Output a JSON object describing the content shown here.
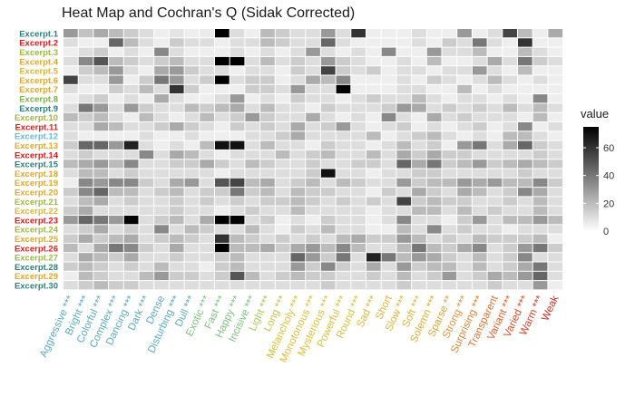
{
  "chart_data": {
    "type": "heatmap",
    "title": "Heat Map and Cochran's Q (Sidak Corrected)",
    "xlabel": "",
    "ylabel": "",
    "columns": [
      {
        "label": "Aggressive",
        "sig": "***",
        "color": "#5aaabf"
      },
      {
        "label": "Bright",
        "sig": "***",
        "color": "#5aaabf"
      },
      {
        "label": "Colorful",
        "sig": "***",
        "color": "#5aaabf"
      },
      {
        "label": "Complex",
        "sig": "***",
        "color": "#5aaabf"
      },
      {
        "label": "Dancing",
        "sig": "***",
        "color": "#5aaabf"
      },
      {
        "label": "Dark",
        "sig": "***",
        "color": "#5aaabf"
      },
      {
        "label": "Dense",
        "sig": "",
        "color": "#5aaabf"
      },
      {
        "label": "Disturbing",
        "sig": "***",
        "color": "#5aaabf"
      },
      {
        "label": "Dull",
        "sig": "***",
        "color": "#5aaabf"
      },
      {
        "label": "Exotic",
        "sig": "***",
        "color": "#7cc07f"
      },
      {
        "label": "Fast",
        "sig": "***",
        "color": "#7cc07f"
      },
      {
        "label": "Happy",
        "sig": "***",
        "color": "#7cc07f"
      },
      {
        "label": "Incisive",
        "sig": "***",
        "color": "#7cc07f"
      },
      {
        "label": "Light",
        "sig": "***",
        "color": "#a8c65a"
      },
      {
        "label": "Long",
        "sig": "***",
        "color": "#c5c050"
      },
      {
        "label": "Melancholy",
        "sig": "***",
        "color": "#d9be3a"
      },
      {
        "label": "Monotonous",
        "sig": "***",
        "color": "#d9be3a"
      },
      {
        "label": "Mysterious",
        "sig": "***",
        "color": "#d9be3a"
      },
      {
        "label": "Powerful",
        "sig": "***",
        "color": "#d9be3a"
      },
      {
        "label": "Round",
        "sig": "***",
        "color": "#d9be3a"
      },
      {
        "label": "Sad",
        "sig": "***",
        "color": "#d9b83a"
      },
      {
        "label": "Short",
        "sig": "",
        "color": "#dcb43a"
      },
      {
        "label": "Slow",
        "sig": "***",
        "color": "#dcb43a"
      },
      {
        "label": "Soft",
        "sig": "***",
        "color": "#dcb43a"
      },
      {
        "label": "Solemn",
        "sig": "***",
        "color": "#dcaa3a"
      },
      {
        "label": "Sparse",
        "sig": "**",
        "color": "#dca23a"
      },
      {
        "label": "Strong",
        "sig": "***",
        "color": "#dc923a"
      },
      {
        "label": "Surprising",
        "sig": "***",
        "color": "#dc8236"
      },
      {
        "label": "Transparent",
        "sig": "",
        "color": "#dc7232"
      },
      {
        "label": "Variant",
        "sig": "***",
        "color": "#d95f2e"
      },
      {
        "label": "Varied",
        "sig": "***",
        "color": "#d5502a"
      },
      {
        "label": "Warm",
        "sig": "***",
        "color": "#d04028"
      },
      {
        "label": "Weak",
        "sig": "",
        "color": "#cc2e24"
      }
    ],
    "rows": [
      {
        "label": "Excerpt.1",
        "color": "#2e7f7a"
      },
      {
        "label": "Excerpt.2",
        "color": "#e31a1c"
      },
      {
        "label": "Excerpt.3",
        "color": "#9db843"
      },
      {
        "label": "Excerpt.4",
        "color": "#e0a82c"
      },
      {
        "label": "Excerpt.5",
        "color": "#d9b43a"
      },
      {
        "label": "Excerpt.6",
        "color": "#e0a82c"
      },
      {
        "label": "Excerpt.7",
        "color": "#e0a82c"
      },
      {
        "label": "Excerpt.8",
        "color": "#7fae4a"
      },
      {
        "label": "Excerpt.9",
        "color": "#2e7f7a"
      },
      {
        "label": "Excerpt.10",
        "color": "#9db843"
      },
      {
        "label": "Excerpt.11",
        "color": "#e31a1c"
      },
      {
        "label": "Excerpt.12",
        "color": "#6ab8d9"
      },
      {
        "label": "Excerpt.13",
        "color": "#e0a82c"
      },
      {
        "label": "Excerpt.14",
        "color": "#e31a1c"
      },
      {
        "label": "Excerpt.15",
        "color": "#2e7f7a"
      },
      {
        "label": "Excerpt.18",
        "color": "#e0a82c"
      },
      {
        "label": "Excerpt.19",
        "color": "#e0a82c"
      },
      {
        "label": "Excerpt.20",
        "color": "#e0a82c"
      },
      {
        "label": "Excerpt.21",
        "color": "#9db843"
      },
      {
        "label": "Excerpt.22",
        "color": "#d9b43a"
      },
      {
        "label": "Excerpt.23",
        "color": "#e31a1c"
      },
      {
        "label": "Excerpt.24",
        "color": "#9db843"
      },
      {
        "label": "Excerpt.25",
        "color": "#e0a82c"
      },
      {
        "label": "Excerpt.26",
        "color": "#e31a1c"
      },
      {
        "label": "Excerpt.27",
        "color": "#9db843"
      },
      {
        "label": "Excerpt.28",
        "color": "#2e7f7a"
      },
      {
        "label": "Excerpt.29",
        "color": "#e0a82c"
      },
      {
        "label": "Excerpt.30",
        "color": "#2e7f7a"
      }
    ],
    "values": [
      [
        30,
        18,
        25,
        20,
        15,
        10,
        5,
        8,
        5,
        6,
        75,
        10,
        5,
        20,
        15,
        10,
        10,
        30,
        10,
        60,
        5,
        5,
        5,
        10,
        5,
        5,
        30,
        5,
        10,
        55,
        20,
        5,
        25
      ],
      [
        10,
        5,
        5,
        45,
        20,
        10,
        5,
        15,
        10,
        10,
        5,
        10,
        10,
        20,
        15,
        10,
        10,
        45,
        10,
        5,
        5,
        5,
        5,
        10,
        5,
        15,
        10,
        40,
        10,
        5,
        60,
        5,
        5
      ],
      [
        5,
        10,
        15,
        5,
        10,
        5,
        35,
        10,
        5,
        5,
        5,
        10,
        5,
        10,
        5,
        10,
        30,
        10,
        5,
        10,
        5,
        35,
        5,
        5,
        30,
        10,
        10,
        20,
        5,
        5,
        20,
        10,
        5
      ],
      [
        10,
        35,
        50,
        20,
        15,
        10,
        15,
        20,
        10,
        10,
        75,
        75,
        10,
        20,
        10,
        15,
        10,
        30,
        15,
        10,
        5,
        5,
        10,
        5,
        20,
        5,
        5,
        10,
        25,
        10,
        40,
        15,
        10
      ],
      [
        5,
        15,
        20,
        30,
        10,
        5,
        25,
        30,
        15,
        10,
        10,
        5,
        10,
        10,
        5,
        15,
        10,
        55,
        15,
        10,
        15,
        5,
        10,
        10,
        5,
        10,
        10,
        30,
        10,
        5,
        20,
        5,
        5
      ],
      [
        55,
        10,
        10,
        30,
        5,
        15,
        40,
        30,
        10,
        15,
        75,
        10,
        15,
        15,
        5,
        10,
        25,
        20,
        35,
        5,
        5,
        5,
        10,
        5,
        15,
        10,
        5,
        10,
        20,
        10,
        5,
        10,
        5
      ],
      [
        10,
        5,
        5,
        15,
        10,
        20,
        10,
        60,
        15,
        5,
        5,
        5,
        15,
        15,
        10,
        30,
        10,
        10,
        75,
        5,
        5,
        5,
        10,
        10,
        5,
        5,
        20,
        5,
        10,
        5,
        5,
        5,
        5
      ],
      [
        5,
        10,
        15,
        5,
        10,
        5,
        25,
        10,
        5,
        5,
        10,
        30,
        5,
        10,
        5,
        15,
        10,
        10,
        5,
        10,
        15,
        10,
        10,
        20,
        10,
        5,
        10,
        10,
        5,
        10,
        5,
        35,
        5
      ],
      [
        10,
        40,
        30,
        10,
        30,
        15,
        10,
        10,
        20,
        15,
        20,
        25,
        10,
        20,
        10,
        10,
        5,
        15,
        10,
        10,
        10,
        15,
        30,
        25,
        10,
        15,
        10,
        15,
        10,
        20,
        10,
        20,
        10
      ],
      [
        20,
        15,
        20,
        10,
        5,
        20,
        10,
        5,
        10,
        20,
        10,
        15,
        30,
        15,
        10,
        10,
        25,
        10,
        5,
        10,
        5,
        35,
        10,
        5,
        25,
        10,
        15,
        10,
        10,
        10,
        5,
        20,
        5
      ],
      [
        10,
        10,
        25,
        20,
        10,
        10,
        15,
        25,
        15,
        10,
        5,
        15,
        10,
        15,
        10,
        25,
        10,
        15,
        30,
        10,
        5,
        10,
        15,
        5,
        10,
        5,
        10,
        15,
        5,
        10,
        35,
        5,
        10
      ],
      [
        10,
        5,
        5,
        5,
        5,
        10,
        5,
        5,
        10,
        5,
        5,
        5,
        10,
        10,
        15,
        25,
        10,
        10,
        10,
        10,
        20,
        5,
        10,
        15,
        20,
        10,
        5,
        10,
        5,
        20,
        20,
        10,
        5
      ],
      [
        15,
        45,
        45,
        30,
        65,
        10,
        5,
        10,
        5,
        20,
        70,
        70,
        10,
        20,
        10,
        10,
        5,
        15,
        10,
        10,
        5,
        10,
        20,
        10,
        15,
        5,
        30,
        40,
        10,
        25,
        45,
        15,
        10
      ],
      [
        10,
        15,
        10,
        10,
        10,
        35,
        10,
        25,
        20,
        10,
        5,
        10,
        10,
        10,
        20,
        10,
        15,
        20,
        10,
        10,
        20,
        10,
        25,
        15,
        25,
        15,
        15,
        10,
        10,
        10,
        10,
        15,
        10
      ],
      [
        20,
        25,
        30,
        20,
        35,
        10,
        10,
        15,
        15,
        25,
        15,
        10,
        20,
        15,
        10,
        10,
        15,
        10,
        10,
        15,
        15,
        10,
        45,
        25,
        40,
        15,
        20,
        30,
        15,
        20,
        25,
        20,
        15
      ],
      [
        10,
        20,
        20,
        10,
        15,
        10,
        10,
        10,
        10,
        10,
        5,
        10,
        10,
        10,
        10,
        10,
        15,
        70,
        10,
        10,
        5,
        10,
        10,
        15,
        15,
        10,
        10,
        10,
        10,
        10,
        15,
        10,
        10
      ],
      [
        5,
        35,
        30,
        35,
        35,
        15,
        10,
        25,
        30,
        10,
        50,
        55,
        20,
        25,
        10,
        15,
        20,
        10,
        20,
        15,
        10,
        10,
        30,
        15,
        20,
        20,
        30,
        25,
        30,
        20,
        20,
        35,
        15
      ],
      [
        15,
        35,
        45,
        20,
        20,
        10,
        15,
        20,
        10,
        15,
        15,
        40,
        15,
        20,
        10,
        20,
        15,
        15,
        10,
        10,
        5,
        15,
        10,
        25,
        15,
        10,
        25,
        20,
        10,
        15,
        35,
        25,
        10
      ],
      [
        10,
        20,
        25,
        10,
        15,
        10,
        10,
        15,
        10,
        15,
        10,
        15,
        10,
        15,
        15,
        20,
        15,
        10,
        15,
        10,
        15,
        10,
        55,
        15,
        20,
        15,
        15,
        10,
        10,
        15,
        10,
        20,
        10
      ],
      [
        15,
        25,
        10,
        10,
        10,
        10,
        10,
        15,
        10,
        10,
        5,
        10,
        15,
        10,
        10,
        20,
        10,
        10,
        10,
        10,
        5,
        10,
        10,
        20,
        20,
        10,
        20,
        10,
        15,
        10,
        10,
        20,
        10
      ],
      [
        30,
        45,
        40,
        30,
        75,
        10,
        15,
        20,
        10,
        25,
        75,
        75,
        10,
        15,
        5,
        10,
        5,
        15,
        10,
        10,
        5,
        10,
        35,
        10,
        10,
        5,
        15,
        30,
        10,
        20,
        20,
        30,
        20
      ],
      [
        10,
        15,
        25,
        10,
        15,
        10,
        35,
        10,
        20,
        15,
        10,
        10,
        20,
        10,
        5,
        15,
        10,
        20,
        10,
        10,
        5,
        5,
        20,
        10,
        35,
        10,
        15,
        10,
        10,
        5,
        10,
        10,
        10
      ],
      [
        15,
        25,
        15,
        20,
        25,
        10,
        15,
        20,
        15,
        10,
        60,
        20,
        15,
        10,
        15,
        10,
        15,
        10,
        20,
        25,
        15,
        15,
        30,
        20,
        10,
        15,
        10,
        20,
        15,
        15,
        15,
        20,
        5
      ],
      [
        20,
        10,
        25,
        40,
        35,
        15,
        10,
        25,
        10,
        10,
        75,
        20,
        20,
        25,
        15,
        25,
        30,
        20,
        35,
        20,
        10,
        10,
        20,
        40,
        20,
        15,
        25,
        35,
        10,
        15,
        30,
        40,
        15
      ],
      [
        10,
        25,
        20,
        15,
        25,
        10,
        10,
        15,
        10,
        10,
        15,
        20,
        10,
        10,
        10,
        45,
        30,
        15,
        40,
        10,
        65,
        40,
        20,
        30,
        25,
        15,
        10,
        20,
        10,
        15,
        35,
        10,
        10
      ],
      [
        15,
        20,
        15,
        10,
        15,
        10,
        20,
        10,
        10,
        5,
        15,
        20,
        10,
        10,
        10,
        30,
        15,
        35,
        15,
        10,
        25,
        10,
        30,
        15,
        20,
        20,
        10,
        20,
        10,
        15,
        25,
        40,
        10
      ],
      [
        5,
        20,
        15,
        10,
        10,
        20,
        30,
        15,
        15,
        10,
        15,
        50,
        20,
        10,
        15,
        20,
        15,
        15,
        10,
        10,
        15,
        10,
        20,
        10,
        15,
        30,
        10,
        15,
        25,
        20,
        30,
        45,
        10
      ],
      [
        10,
        15,
        20,
        15,
        15,
        10,
        10,
        10,
        10,
        10,
        10,
        10,
        10,
        10,
        10,
        10,
        10,
        15,
        10,
        10,
        10,
        10,
        15,
        10,
        10,
        10,
        10,
        10,
        15,
        10,
        10,
        30,
        5
      ]
    ],
    "legend": {
      "title": "value",
      "ticks": [
        0,
        20,
        40,
        60
      ],
      "range": [
        0,
        75
      ],
      "low_color": "#ffffff",
      "high_color": "#000000",
      "placement": "right"
    }
  }
}
